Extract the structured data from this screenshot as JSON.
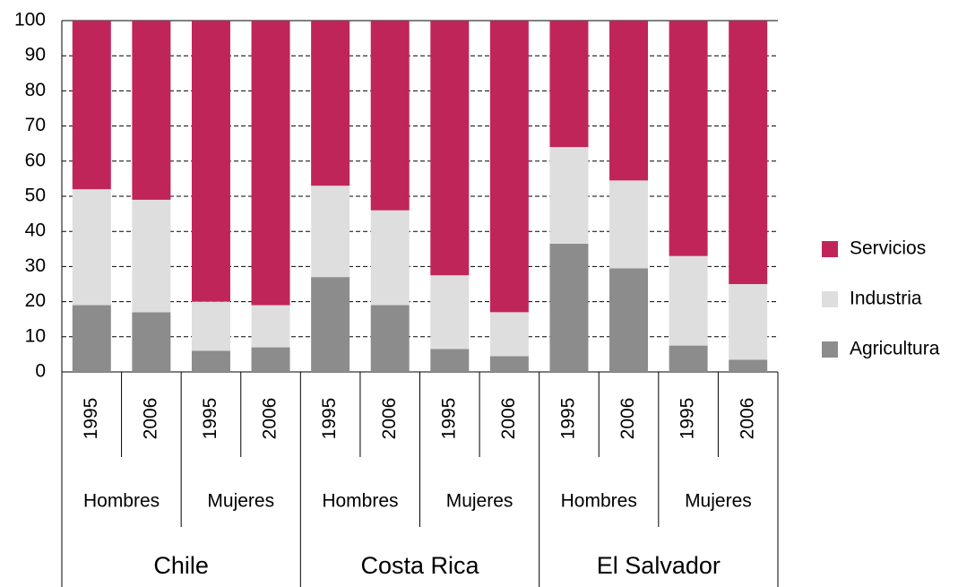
{
  "chart_data": {
    "type": "stacked_bar",
    "categories": [
      "1995",
      "2006",
      "1995",
      "2006",
      "1995",
      "2006",
      "1995",
      "2006",
      "1995",
      "2006",
      "1995",
      "2006"
    ],
    "sex_groups": [
      "Hombres",
      "Mujeres",
      "Hombres",
      "Mujeres",
      "Hombres",
      "Mujeres"
    ],
    "countries": [
      "Chile",
      "Costa Rica",
      "El Salvador"
    ],
    "series": [
      {
        "name": "Agricultura",
        "color": "#8c8c8c",
        "values": [
          19,
          17,
          6,
          7,
          27,
          19,
          6.5,
          4.5,
          36.5,
          29.5,
          7.5,
          3.5
        ]
      },
      {
        "name": "Industria",
        "color": "#dedede",
        "values": [
          33,
          32,
          14,
          12,
          26,
          27,
          21,
          12.5,
          27.5,
          25,
          25.5,
          21.5
        ]
      },
      {
        "name": "Servicios",
        "color": "#c0255a",
        "values": [
          48,
          51,
          80,
          81,
          47,
          54,
          72.5,
          83,
          36,
          45.5,
          67,
          75
        ]
      }
    ],
    "ylim": [
      0,
      100
    ],
    "yticks": [
      0,
      10,
      20,
      30,
      40,
      50,
      60,
      70,
      80,
      90,
      100
    ],
    "grid": true
  }
}
